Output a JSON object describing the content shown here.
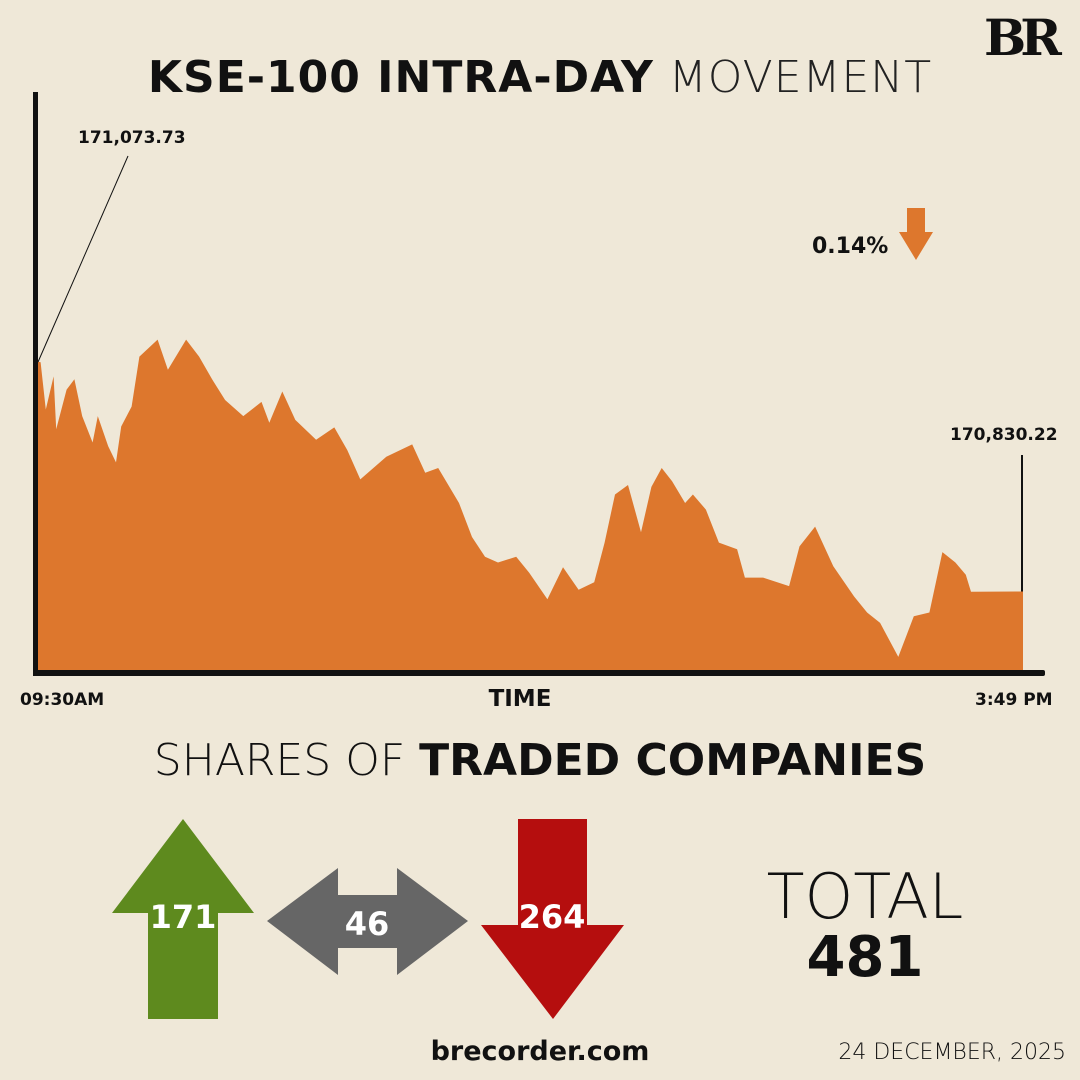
{
  "header": {
    "title_bold": "KSE-100 INTRA-DAY",
    "title_light": " MOVEMENT",
    "logo": "BR"
  },
  "change": {
    "value": "0.14%",
    "direction": "down",
    "icon": "arrow-down-icon",
    "color": "#DD772D"
  },
  "chart_data": {
    "type": "area",
    "xlabel": "TIME",
    "ylabel": "",
    "x_start_label": "09:30AM",
    "x_end_label": "3:49 PM",
    "open_label": "171,073.73",
    "close_label": "170,830.22",
    "color": "#DD772D",
    "grid": false,
    "ylim": [
      170745,
      171356
    ],
    "x": [
      "09:30",
      "09:31",
      "09:33",
      "09:36",
      "09:37",
      "09:41",
      "09:44",
      "09:47",
      "09:51",
      "09:53",
      "09:57",
      "10:00",
      "10:02",
      "10:06",
      "10:09",
      "10:16",
      "10:20",
      "10:27",
      "10:32",
      "10:37",
      "10:42",
      "10:49",
      "10:56",
      "10:59",
      "11:04",
      "11:09",
      "11:17",
      "11:24",
      "11:29",
      "11:34",
      "11:44",
      "11:54",
      "11:59",
      "12:04",
      "12:12",
      "12:17",
      "12:22",
      "12:27",
      "12:34",
      "12:39",
      "12:46",
      "12:52",
      "12:58",
      "13:04",
      "13:08",
      "13:12",
      "13:17",
      "13:22",
      "13:26",
      "13:30",
      "13:34",
      "13:39",
      "13:42",
      "13:47",
      "13:52",
      "13:59",
      "14:02",
      "14:09",
      "14:19",
      "14:23",
      "14:29",
      "14:36",
      "14:44",
      "14:49",
      "14:54",
      "15:01",
      "15:07",
      "15:13",
      "15:18",
      "15:23",
      "15:27",
      "15:29",
      "15:49"
    ],
    "values": [
      171073.73,
      171073,
      171023,
      171058,
      171002,
      171044,
      171055,
      171016,
      170988,
      171016,
      170984,
      170967,
      171005,
      171026,
      171079,
      171097,
      171065,
      171097,
      171079,
      171055,
      171033,
      171016,
      171031,
      171009,
      171042,
      171012,
      170991,
      171004,
      170980,
      170949,
      170973,
      170986,
      170956,
      170961,
      170924,
      170888,
      170867,
      170861,
      170867,
      170850,
      170822,
      170856,
      170832,
      170840,
      170882,
      170933,
      170943,
      170893,
      170941,
      170961,
      170947,
      170924,
      170933,
      170917,
      170882,
      170875,
      170845,
      170845,
      170836,
      170878,
      170899,
      170857,
      170825,
      170808,
      170797,
      170761,
      170804,
      170808,
      170872,
      170861,
      170848,
      170830,
      170830.22
    ]
  },
  "shares": {
    "title_light": "SHARES OF ",
    "title_bold": "TRADED COMPANIES",
    "advanced": {
      "value": "171",
      "color": "#5E8A1E",
      "icon": "arrow-up-icon"
    },
    "unchanged": {
      "value": "46",
      "color": "#666666",
      "icon": "double-arrow-icon"
    },
    "declined": {
      "value": "264",
      "color": "#B50E0E",
      "icon": "arrow-down-icon"
    },
    "total_label": "TOTAL",
    "total_value": "481"
  },
  "footer": {
    "site": "brecorder.com",
    "date": "24 DECEMBER, 2025"
  }
}
